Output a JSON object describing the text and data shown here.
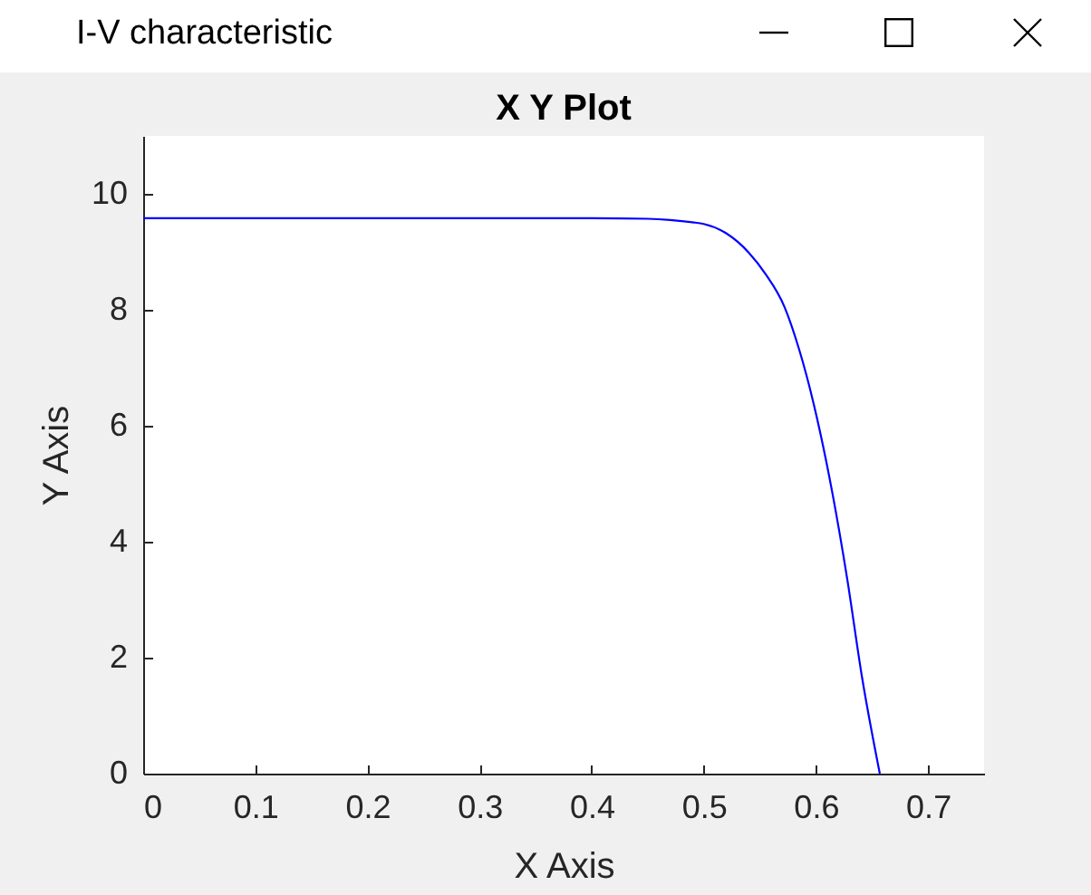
{
  "chart_data": {
    "type": "line",
    "title": "X Y Plot",
    "xlabel": "X Axis",
    "ylabel": "Y Axis",
    "annotations": [
      "I-V characteristic"
    ],
    "x": [
      0,
      0.1,
      0.2,
      0.3,
      0.4,
      0.45,
      0.47,
      0.49,
      0.5,
      0.52,
      0.54,
      0.555,
      0.572,
      0.585,
      0.598,
      0.615,
      0.628,
      0.641,
      0.657
    ],
    "series": [
      {
        "color": "#0000ff",
        "values": [
          9.58,
          9.58,
          9.58,
          9.58,
          9.58,
          9.57,
          9.55,
          9.51,
          9.48,
          9.32,
          8.99,
          8.62,
          8.05,
          7.32,
          6.38,
          4.81,
          3.35,
          1.68,
          0
        ]
      }
    ],
    "xlim": [
      0,
      0.75
    ],
    "xticks": [
      0,
      0.1,
      0.2,
      0.3,
      0.4,
      0.5,
      0.6,
      0.7
    ],
    "ylim": [
      0,
      11
    ],
    "yticks": [
      0,
      2,
      4,
      6,
      8,
      10
    ],
    "grid": false
  }
}
